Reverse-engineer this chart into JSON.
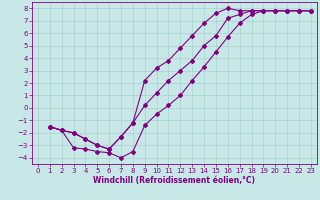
{
  "xlabel": "Windchill (Refroidissement éolien,°C)",
  "bg_color": "#c8e8e8",
  "line_color": "#800080",
  "grid_color": "#a8d0d0",
  "xlim": [
    -0.5,
    23.5
  ],
  "ylim": [
    -4.5,
    8.5
  ],
  "xticks": [
    0,
    1,
    2,
    3,
    4,
    5,
    6,
    7,
    8,
    9,
    10,
    11,
    12,
    13,
    14,
    15,
    16,
    17,
    18,
    19,
    20,
    21,
    22,
    23
  ],
  "yticks": [
    -4,
    -3,
    -2,
    -1,
    0,
    1,
    2,
    3,
    4,
    5,
    6,
    7,
    8
  ],
  "line1_x": [
    1,
    2,
    3,
    4,
    5,
    6,
    7,
    8,
    9,
    10,
    11,
    12,
    13,
    14,
    15,
    16,
    17,
    18,
    19,
    20,
    21,
    22,
    23
  ],
  "line1_y": [
    -1.5,
    -1.8,
    -3.2,
    -3.3,
    -3.5,
    -3.6,
    -4.0,
    -3.5,
    -1.4,
    -0.5,
    0.2,
    1.0,
    2.2,
    3.3,
    4.5,
    5.7,
    6.8,
    7.5,
    7.8,
    7.8,
    7.8,
    7.8,
    7.8
  ],
  "line2_x": [
    1,
    2,
    3,
    4,
    5,
    6,
    7,
    8,
    9,
    10,
    11,
    12,
    13,
    14,
    15,
    16,
    17,
    18,
    19,
    20,
    21,
    22,
    23
  ],
  "line2_y": [
    -1.5,
    -1.8,
    -2.0,
    -2.5,
    -3.0,
    -3.3,
    -2.3,
    -1.2,
    2.2,
    3.2,
    3.8,
    4.8,
    5.8,
    6.8,
    7.6,
    8.0,
    7.8,
    7.8,
    7.8,
    7.8,
    7.8,
    7.8,
    7.8
  ],
  "line3_x": [
    1,
    2,
    3,
    4,
    5,
    6,
    7,
    8,
    9,
    10,
    11,
    12,
    13,
    14,
    15,
    16,
    17,
    18,
    19,
    20,
    21,
    22,
    23
  ],
  "line3_y": [
    -1.5,
    -1.8,
    -2.0,
    -2.5,
    -3.0,
    -3.3,
    -2.3,
    -1.2,
    0.2,
    1.2,
    2.2,
    3.0,
    3.8,
    5.0,
    5.8,
    7.2,
    7.5,
    7.8,
    7.8,
    7.8,
    7.8,
    7.8,
    7.8
  ],
  "marker_size": 2.0,
  "line_width": 0.8,
  "xlabel_fontsize": 5.5,
  "tick_fontsize": 5.0
}
